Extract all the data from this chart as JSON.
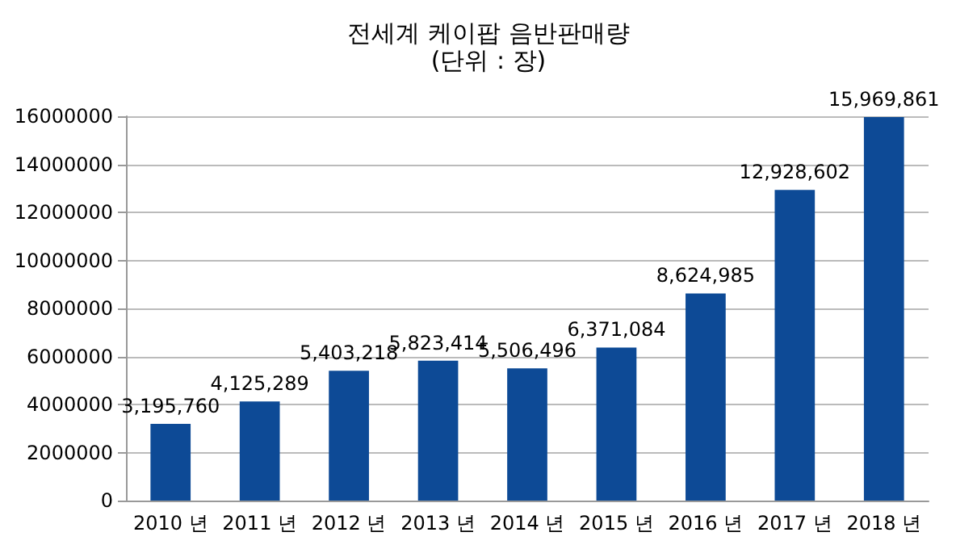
{
  "chart_data": {
    "type": "bar",
    "title": "전세계 케이팝 음반판매량",
    "subtitle": "(단위 : 장)",
    "categories": [
      "2010 년",
      "2011 년",
      "2012 년",
      "2013 년",
      "2014 년",
      "2015 년",
      "2016 년",
      "2017 년",
      "2018 년"
    ],
    "values": [
      3195760,
      4125289,
      5403218,
      5823414,
      5506496,
      6371084,
      8624985,
      12928602,
      15969861
    ],
    "value_labels": [
      "3,195,760",
      "4,125,289",
      "5,403,218",
      "5,823,414",
      "5,506,496",
      "6,371,084",
      "8,624,985",
      "12,928,602",
      "15,969,861"
    ],
    "color": "#0d4a96",
    "ylim": [
      0,
      16000000
    ],
    "yticks": [
      0,
      2000000,
      4000000,
      6000000,
      8000000,
      10000000,
      12000000,
      14000000,
      16000000
    ],
    "grid": "y"
  }
}
